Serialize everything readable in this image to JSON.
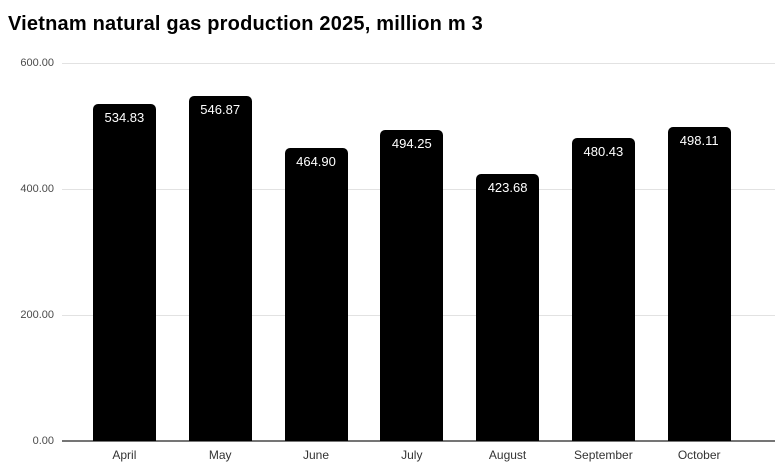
{
  "chart_data": {
    "type": "bar",
    "title": "Vietnam natural gas production 2025, million m 3",
    "categories": [
      "April",
      "May",
      "June",
      "July",
      "August",
      "September",
      "October"
    ],
    "values": [
      534.83,
      546.87,
      464.9,
      494.25,
      423.68,
      480.43,
      498.11
    ],
    "value_labels": [
      "534.83",
      "546.87",
      "464.90",
      "494.25",
      "423.68",
      "480.43",
      "498.11"
    ],
    "xlabel": "",
    "ylabel": "",
    "y_axis": {
      "min": 0,
      "max": 600,
      "ticks": [
        {
          "value": 600,
          "label": "600.00"
        },
        {
          "value": 400,
          "label": "400.00"
        },
        {
          "value": 200,
          "label": "200.00"
        },
        {
          "value": 0,
          "label": "0.00"
        }
      ]
    },
    "grid": true,
    "legend_position": "none",
    "colors": {
      "bar": "#000000",
      "value_label": "#ffffff",
      "gridline": "#e2e2e2",
      "axis_line": "#757575",
      "title": "#000000",
      "tick_label": "#4a4a4a",
      "category_label": "#333333",
      "background": "#ffffff"
    }
  }
}
